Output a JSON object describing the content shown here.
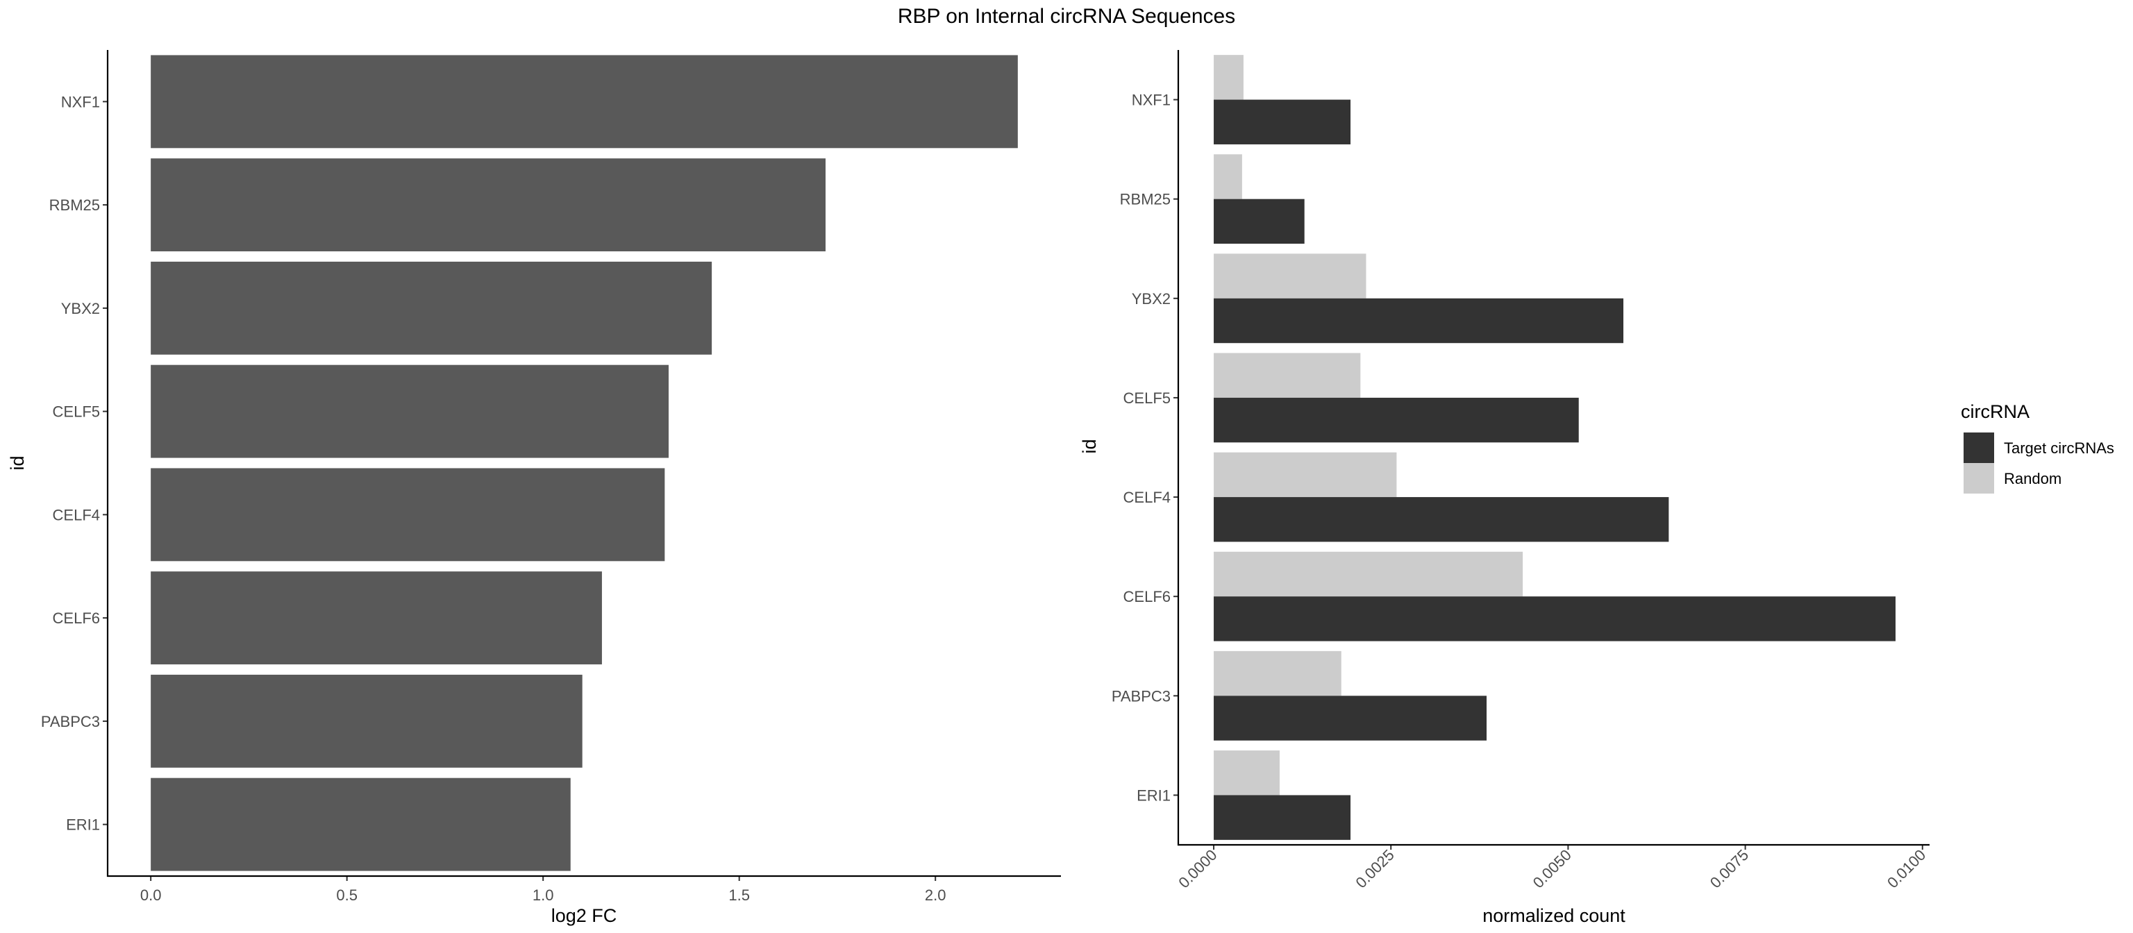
{
  "title": "RBP on Internal circRNA Sequences",
  "colors": {
    "left_bar": "#595959",
    "target": "#333333",
    "random": "#cccccc"
  },
  "chart_data": [
    {
      "type": "bar",
      "orientation": "horizontal",
      "categories": [
        "NXF1",
        "RBM25",
        "YBX2",
        "CELF5",
        "CELF4",
        "CELF6",
        "PABPC3",
        "ERI1"
      ],
      "values": [
        2.21,
        1.72,
        1.43,
        1.32,
        1.31,
        1.15,
        1.1,
        1.07
      ],
      "xlabel": "log2 FC",
      "ylabel": "id",
      "xlim": [
        -0.11,
        2.32
      ],
      "xticks": [
        0.0,
        0.5,
        1.0,
        1.5,
        2.0
      ],
      "xtick_labels": [
        "0.0",
        "0.5",
        "1.0",
        "1.5",
        "2.0"
      ],
      "grid": false
    },
    {
      "type": "bar",
      "orientation": "horizontal",
      "grouped": true,
      "categories": [
        "NXF1",
        "RBM25",
        "YBX2",
        "CELF5",
        "CELF4",
        "CELF6",
        "PABPC3",
        "ERI1"
      ],
      "series": [
        {
          "name": "Target circRNAs",
          "values": [
            0.00193,
            0.00128,
            0.00578,
            0.00515,
            0.00642,
            0.00962,
            0.00385,
            0.00193
          ]
        },
        {
          "name": "Random",
          "values": [
            0.00042,
            0.0004,
            0.00215,
            0.00207,
            0.00258,
            0.00436,
            0.0018,
            0.00093
          ]
        }
      ],
      "xlabel": "normalized count",
      "ylabel": "id",
      "xlim": [
        -0.0005,
        0.0101
      ],
      "xticks": [
        0.0,
        0.0025,
        0.005,
        0.0075,
        0.01
      ],
      "xtick_labels": [
        "0.0000",
        "0.0025",
        "0.0050",
        "0.0075",
        "0.0100"
      ],
      "legend": {
        "title": "circRNA",
        "placement": "right",
        "entries": [
          "Target circRNAs",
          "Random"
        ]
      },
      "grid": false
    }
  ]
}
